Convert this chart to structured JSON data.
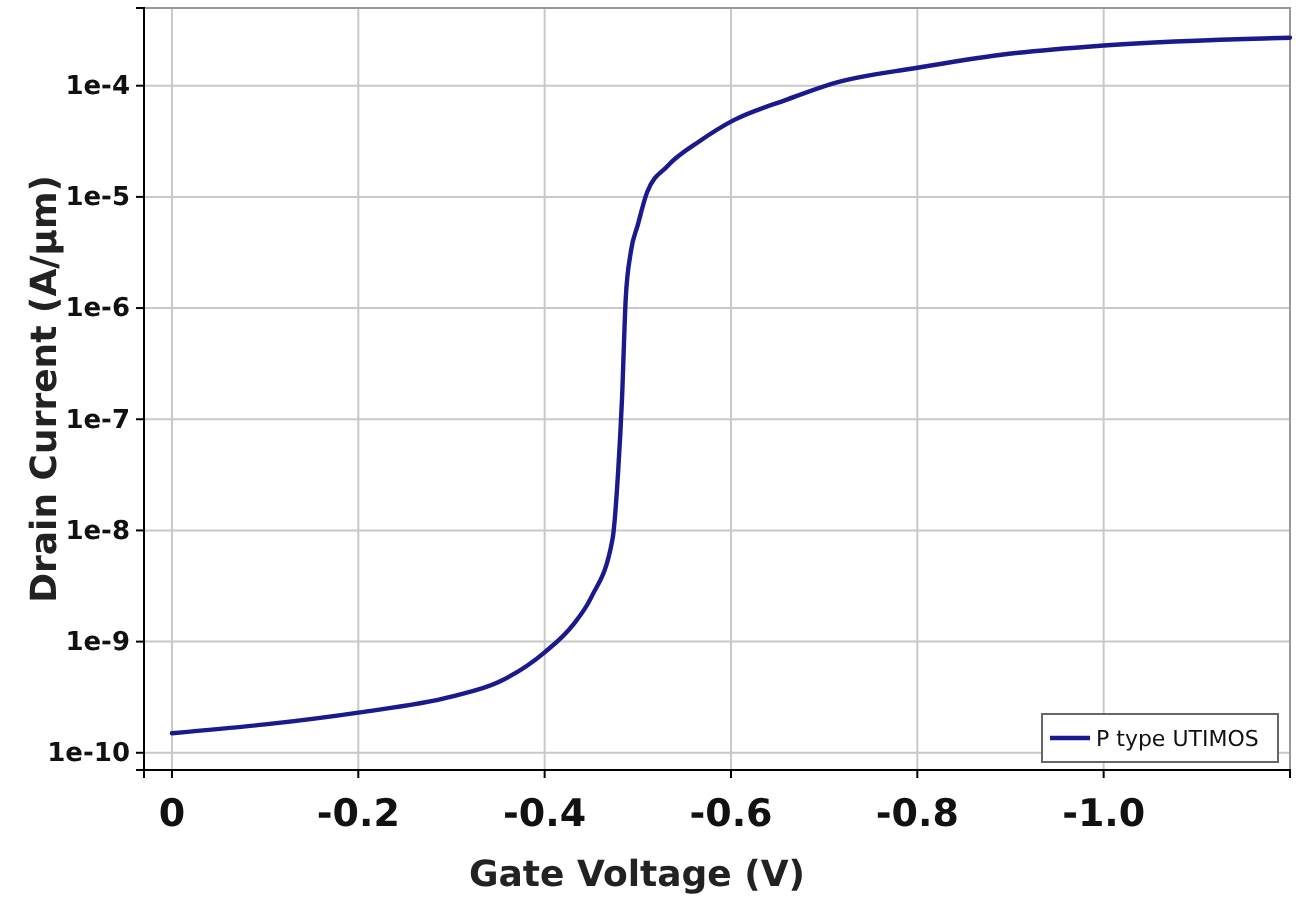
{
  "chart_data": {
    "type": "line",
    "xlabel": "Gate Voltage (V)",
    "ylabel": "Drain Current  (A/μm)",
    "xlim": [
      0.03,
      -1.2
    ],
    "xticks": [
      0,
      -0.2,
      -0.4,
      -0.6,
      -0.8,
      {
        "value": -1.0,
        "label": "-1.0"
      }
    ],
    "ylim": [
      7e-11,
      0.0005
    ],
    "yticks": [
      {
        "value": 1e-10,
        "label": "1e-10"
      },
      {
        "value": 1e-09,
        "label": "1e-9"
      },
      {
        "value": 1e-08,
        "label": "1e-8"
      },
      {
        "value": 1e-07,
        "label": "1e-7"
      },
      {
        "value": 1e-06,
        "label": "1e-6"
      },
      {
        "value": 1e-05,
        "label": "1e-5"
      },
      {
        "value": 0.0001,
        "label": "1e-4"
      }
    ],
    "log": "y",
    "grid": true,
    "legend": "bottom right",
    "line_style": "solid",
    "marker": "none",
    "series": [
      {
        "name": "P type UTIMOS",
        "color": "#1a1a8c",
        "x": [
          0,
          -0.1,
          -0.2,
          -0.3,
          -0.35,
          -0.4,
          -0.43,
          -0.45,
          -0.473,
          -0.479,
          -0.483,
          -0.487,
          -0.4925,
          -0.5,
          -0.51,
          -0.532,
          -0.567,
          -0.603,
          -0.66,
          -0.71,
          -0.8,
          -0.89,
          -1.0,
          -1.2
        ],
        "values": [
          1.5e-10,
          1.8e-10,
          2.3e-10,
          3.2e-10,
          4.3e-10,
          8e-10,
          1.4e-09,
          2.5e-09,
          8.5e-09,
          3.5e-08,
          1.5e-07,
          1.2e-06,
          3.2e-06,
          5.6e-06,
          1.1e-05,
          1.9e-05,
          3.2e-05,
          4.9e-05,
          7.5e-05,
          0.000105,
          0.000145,
          0.00019,
          0.00023,
          0.00027
        ]
      }
    ]
  }
}
